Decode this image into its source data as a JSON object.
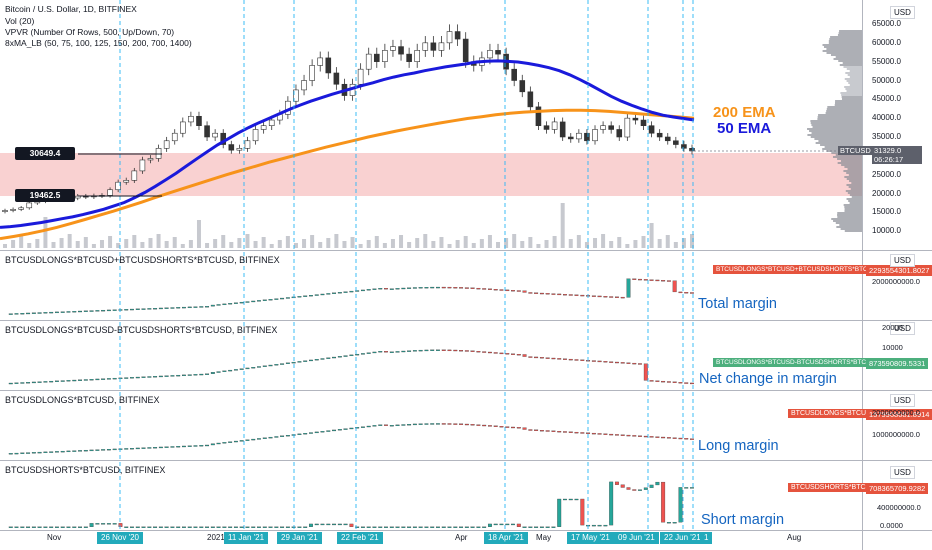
{
  "header": {
    "symbol": "Bitcoin / U.S. Dollar, 1D, BITFINEX",
    "vol": "Vol (20)",
    "vpvr": "VPVR (Number Of Rows, 500, Up/Down, 70)",
    "ma": "8xMA_LB (50, 75, 100, 125, 150, 200, 700, 1400)"
  },
  "currency_label": "USD",
  "main_axis": [
    "65000.0",
    "60000.0",
    "55000.0",
    "50000.0",
    "45000.0",
    "40000.0",
    "35000.0",
    "30000.0",
    "25000.0",
    "20000.0",
    "15000.0",
    "10000.0"
  ],
  "price_badges": {
    "last_symbol": "BTCUSD",
    "last_price": "31329.0",
    "countdown": "06:26:17"
  },
  "horizontal_levels": {
    "upper": "30649.4",
    "lower": "19462.5"
  },
  "annotations": {
    "ema200": "200 EMA",
    "ema50": "50 EMA",
    "total_margin": "Total margin",
    "net_change": "Net change in margin",
    "long_margin": "Long margin",
    "short_margin": "Short margin"
  },
  "panes": [
    {
      "title": "BTCUSDLONGS*BTCUSD+BTCUSDSHORTS*BTCUSD, BITFINEX",
      "badge_symbol": "BTCUSDLONGS*BTCUSD+BTCUSDSHORTS*BTCUSD",
      "badge_value": "2293554301.8027",
      "axis": [
        "4000000000.0",
        "2000000000.0"
      ]
    },
    {
      "title": "BTCUSDLONGS*BTCUSD-BTCUSDSHORTS*BTCUSD, BITFINEX",
      "badge_symbol": "BTCUSDLONGS*BTCUSD-BTCUSDSHORTS*BTCUSD",
      "badge_value": "873590809.5331",
      "axis": [
        "20000",
        "10000"
      ]
    },
    {
      "title": "BTCUSDLONGS*BTCUSD, BITFINEX",
      "badge_symbol": "BTCUSDLONGS*BTCUSD",
      "badge_value": "1579968081.8914",
      "axis": [
        "2000000000.0",
        "1000000000.0"
      ]
    },
    {
      "title": "BTCUSDSHORTS*BTCUSD, BITFINEX",
      "badge_symbol": "BTCUSDSHORTS*BTCUSD",
      "badge_value": "708365709.9282",
      "axis": [
        "800000000.0",
        "400000000.0",
        "0.0000"
      ]
    }
  ],
  "x_axis": {
    "plain": [
      "Nov",
      "2021",
      "Apr",
      "May",
      "Ju",
      "Aug"
    ],
    "highlighted": [
      "26 Nov '20",
      "11 Jan '21",
      "29 Jan '21",
      "22 Feb '21",
      "18 Apr '21",
      "17 May '21",
      "09 Jun '21",
      "22 Jun '21",
      "1"
    ]
  },
  "colors": {
    "ema200": "#f7931a",
    "ema50": "#1a1adb",
    "zone": "#f8c9c9",
    "up": "#26a69a",
    "down": "#ef5350",
    "vline": "#29b6f6",
    "badge_green": "#4caf7d",
    "badge_red": "#e5533d"
  },
  "chart_data": {
    "type": "line",
    "series_prices": [
      15500,
      15800,
      16200,
      17500,
      18000,
      18700,
      18400,
      19000,
      18800,
      19300,
      19100,
      19400,
      19500,
      21000,
      23000,
      23500,
      26000,
      28900,
      29300,
      32000,
      34000,
      36000,
      39000,
      40500,
      38000,
      35000,
      36000,
      33000,
      31500,
      32000,
      34000,
      37000,
      38000,
      39500,
      41000,
      44500,
      47500,
      50000,
      54000,
      56000,
      52000,
      49000,
      46000,
      49000,
      53000,
      57000,
      55000,
      58000,
      59000,
      57000,
      55000,
      58000,
      60000,
      58000,
      60000,
      63000,
      61000,
      55000,
      54000,
      56000,
      58000,
      57000,
      53000,
      50000,
      47000,
      43000,
      38000,
      37000,
      39000,
      35000,
      34500,
      36000,
      34000,
      37000,
      38000,
      37000,
      35000,
      40000,
      39500,
      38000,
      36000,
      35000,
      34000,
      33000,
      32000,
      31300
    ],
    "ema50": [
      11000,
      11200,
      11500,
      11900,
      12300,
      12800,
      13300,
      13800,
      14400,
      15100,
      15800,
      16700,
      17600,
      18900,
      20300,
      21900,
      23600,
      25400,
      27300,
      29200,
      31100,
      32900,
      34500,
      36100,
      37500,
      38800,
      40000,
      41200,
      42400,
      43500,
      44500,
      45400,
      46300,
      47100,
      47900,
      48700,
      49400,
      50200,
      50900,
      51500,
      52000,
      52600,
      53100,
      53600,
      54000,
      54400,
      54900,
      55100,
      55200,
      55100,
      54900,
      54500,
      54000,
      53400,
      52600,
      51500,
      50200,
      48800,
      47300,
      45800,
      44500,
      43400,
      42400,
      41500,
      40800,
      40300,
      39900,
      39500
    ],
    "ema200": [
      8000,
      8600,
      9300,
      10100,
      11000,
      12000,
      13100,
      14200,
      15300,
      16500,
      17700,
      19000,
      20200,
      21400,
      22600,
      23800,
      25000,
      26100,
      27200,
      28300,
      29300,
      30300,
      31300,
      32300,
      33200,
      34100,
      35000,
      35800,
      36600,
      37300,
      38000,
      38700,
      39300,
      39900,
      40400,
      40900,
      41300,
      41600,
      41800,
      42000,
      42100,
      42100,
      42000,
      41800,
      41500,
      41200,
      40900,
      40600,
      40300,
      40000
    ]
  }
}
